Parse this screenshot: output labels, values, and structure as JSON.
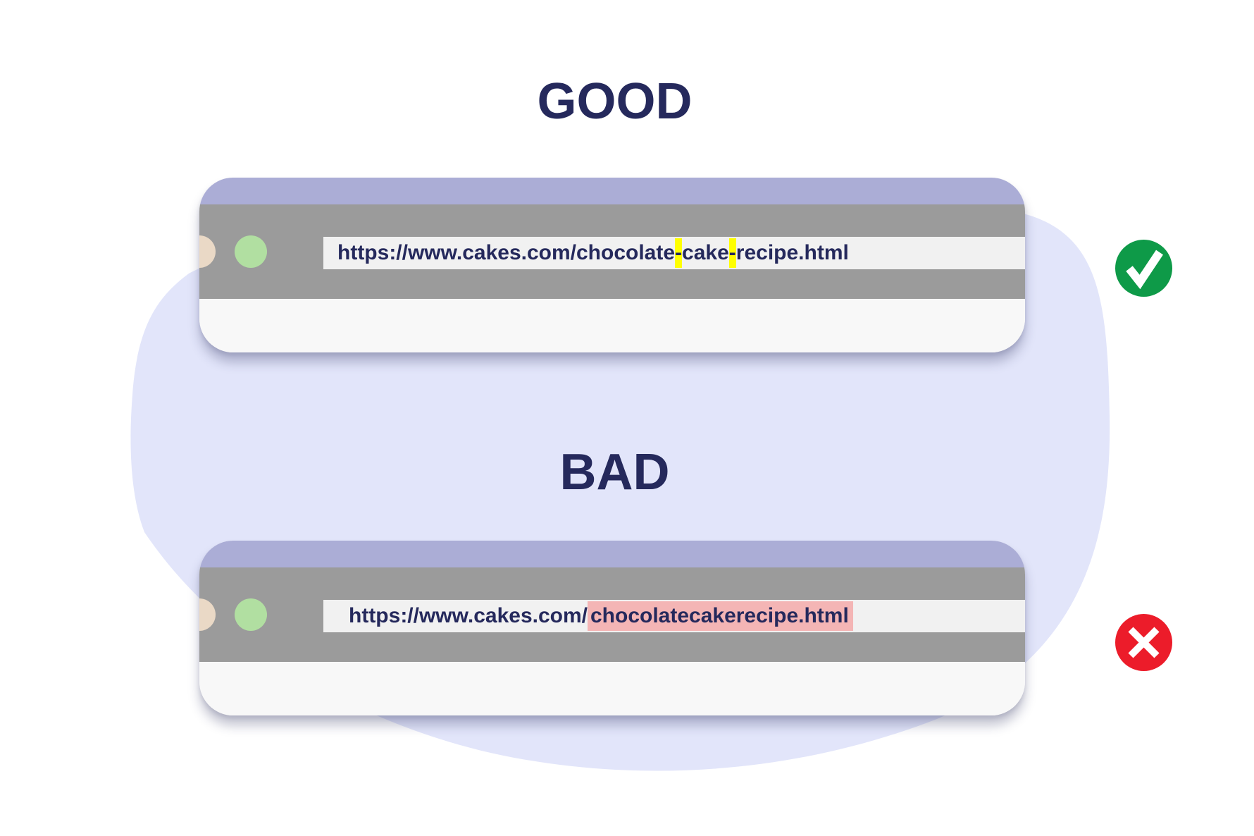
{
  "colors": {
    "heading": "#25295c",
    "blob": "#e2e5fa",
    "titlebar": "#abadd6",
    "toolbar": "#9b9b9b",
    "address_bar": "#f1f1f1",
    "content": "#f8f8f8",
    "dot_beige": "#ead9c6",
    "dot_green": "#b1dfa1",
    "highlight_yellow": "#ffff00",
    "highlight_pink": "#f4b5b5",
    "good_badge": "#0e9a48",
    "bad_badge": "#ec1c2a"
  },
  "good": {
    "heading": "GOOD",
    "url_parts": [
      "https://www.cakes.com/chocolate",
      "-",
      "cake",
      "-",
      "recipe.html"
    ],
    "badge_icon": "checkmark-icon"
  },
  "bad": {
    "heading": "BAD",
    "url_prefix": "https://www.cakes.com/",
    "url_highlight": "chocolatecakerecipe.html",
    "badge_icon": "cross-icon"
  }
}
